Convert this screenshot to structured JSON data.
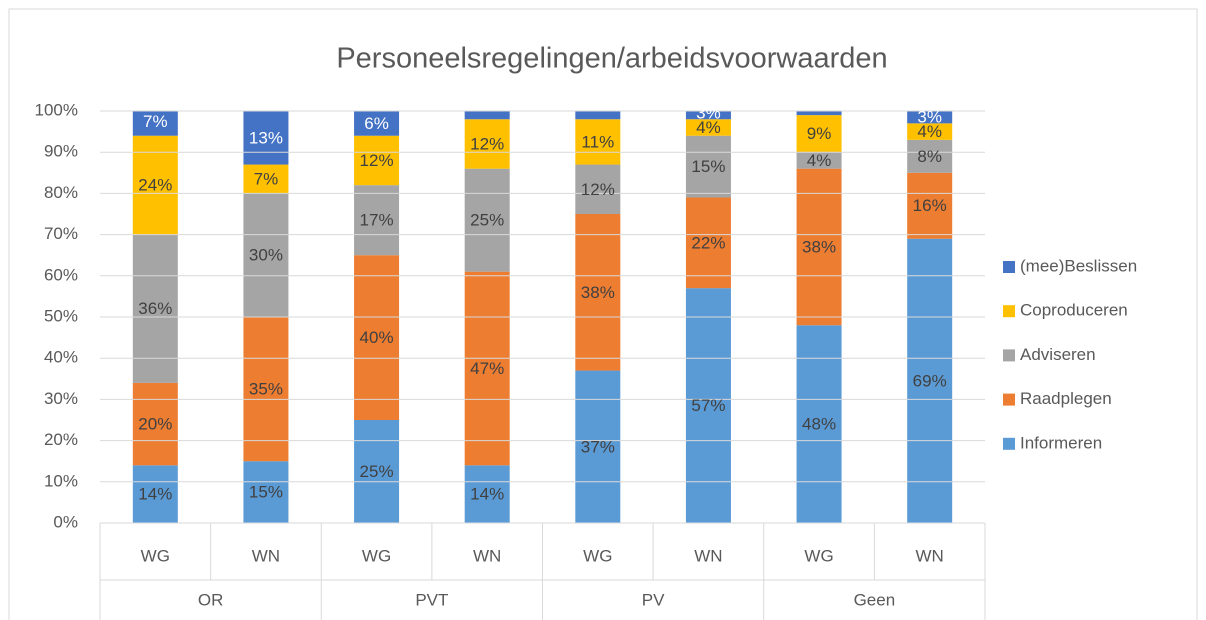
{
  "chart_data": {
    "type": "stacked_bar",
    "title": "Personeelsregelingen/arbeidsvoorwaarden",
    "categories": [
      "WG",
      "WN",
      "WG",
      "WN",
      "WG",
      "WN",
      "WG",
      "WN"
    ],
    "groups": [
      "OR",
      "PVT",
      "PV",
      "Geen"
    ],
    "ylim": [
      0,
      100
    ],
    "yticks": [
      {
        "value": 0,
        "label": "0%"
      },
      {
        "value": 10,
        "label": "10%"
      },
      {
        "value": 20,
        "label": "20%"
      },
      {
        "value": 30,
        "label": "30%"
      },
      {
        "value": 40,
        "label": "40%"
      },
      {
        "value": 50,
        "label": "50%"
      },
      {
        "value": 60,
        "label": "60%"
      },
      {
        "value": 70,
        "label": "70%"
      },
      {
        "value": 80,
        "label": "80%"
      },
      {
        "value": 90,
        "label": "90%"
      },
      {
        "value": 100,
        "label": "100%"
      }
    ],
    "grid": true,
    "legend": "right",
    "series": [
      {
        "name": "Informeren",
        "color": "#5b9bd5",
        "label_color": "#404040",
        "values": [
          14,
          15,
          25,
          14,
          37,
          57,
          48,
          69
        ],
        "value_labels": [
          "14%",
          "15%",
          "25%",
          "14%",
          "37%",
          "57%",
          "48%",
          "69%"
        ]
      },
      {
        "name": "Raadplegen",
        "color": "#ed7d31",
        "label_color": "#404040",
        "values": [
          20,
          35,
          40,
          47,
          38,
          22,
          38,
          16
        ],
        "value_labels": [
          "20%",
          "35%",
          "40%",
          "47%",
          "38%",
          "22%",
          "38%",
          "16%"
        ]
      },
      {
        "name": "Adviseren",
        "color": "#a5a5a5",
        "label_color": "#404040",
        "values": [
          36,
          30,
          17,
          25,
          12,
          15,
          4,
          8
        ],
        "value_labels": [
          "36%",
          "30%",
          "17%",
          "25%",
          "12%",
          "15%",
          "4%",
          "8%"
        ]
      },
      {
        "name": "Coproduceren",
        "color": "#ffc000",
        "label_color": "#404040",
        "values": [
          24,
          7,
          12,
          12,
          11,
          4,
          9,
          4
        ],
        "value_labels": [
          "24%",
          "7%",
          "12%",
          "12%",
          "11%",
          "4%",
          "9%",
          "4%"
        ]
      },
      {
        "name": "(mee)Beslissen",
        "color": "#4472c4",
        "label_color": "#ffffff",
        "values": [
          7,
          13,
          6,
          2,
          2,
          3,
          1,
          3
        ],
        "value_labels": [
          "7%",
          "13%",
          "6%",
          null,
          null,
          "3%",
          null,
          "3%"
        ]
      }
    ]
  }
}
